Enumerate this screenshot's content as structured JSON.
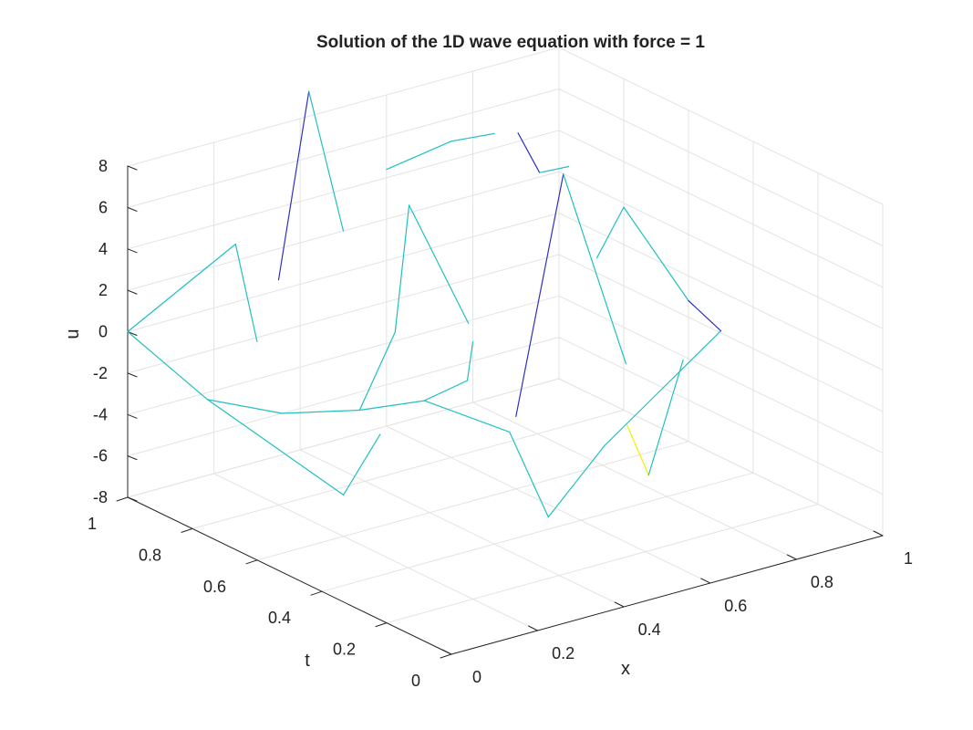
{
  "chart_data": {
    "type": "mesh3d",
    "title": "Solution of the 1D wave equation with force = 1",
    "xlabel": "x",
    "ylabel": "t",
    "zlabel": "u",
    "xlim": [
      0,
      1
    ],
    "ylim": [
      0,
      1
    ],
    "zlim": [
      -8,
      8
    ],
    "x_ticks": [
      "0",
      "0.2",
      "0.4",
      "0.6",
      "0.8",
      "1"
    ],
    "y_ticks": [
      "0",
      "0.2",
      "0.4",
      "0.6",
      "0.8",
      "1"
    ],
    "z_ticks": [
      "-8",
      "-6",
      "-4",
      "-2",
      "0",
      "2",
      "4",
      "6",
      "8"
    ],
    "grid": true,
    "colors": {
      "mesh": "#20c0c0",
      "low": "#3030c0",
      "high": "#f0f000",
      "grid": "#e3e3e3",
      "axis": "#262626"
    }
  }
}
